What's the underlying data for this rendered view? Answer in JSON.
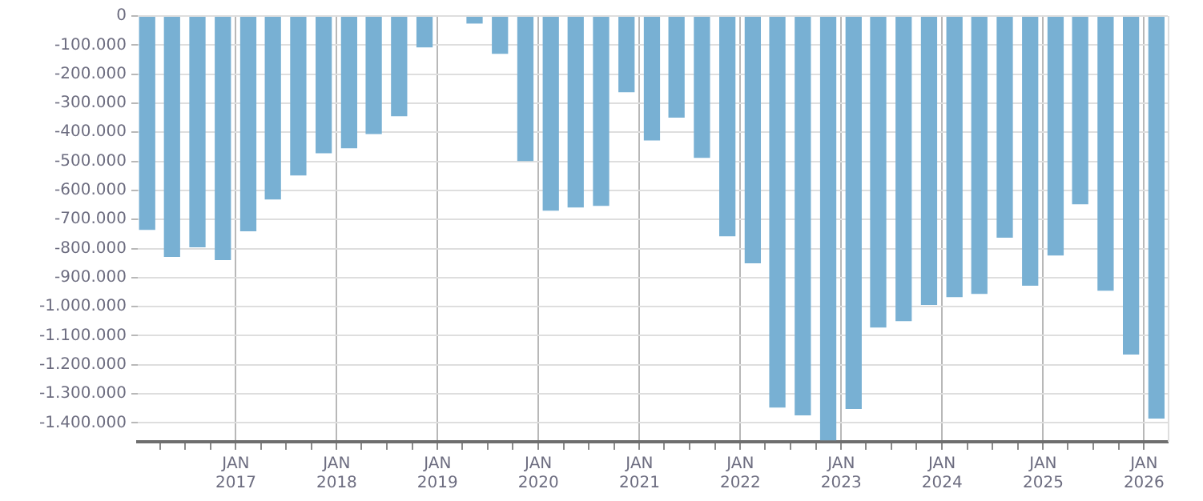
{
  "chart_data": {
    "type": "bar",
    "color": "#78b0d3",
    "x": [
      "2016-02-15",
      "2016-05-15",
      "2016-08-15",
      "2016-11-15",
      "2017-02-15",
      "2017-05-15",
      "2017-08-15",
      "2017-11-15",
      "2018-02-15",
      "2018-05-15",
      "2018-08-15",
      "2018-11-15",
      "2019-02-15",
      "2019-05-15",
      "2019-08-15",
      "2019-11-15",
      "2020-02-15",
      "2020-05-15",
      "2020-08-15",
      "2020-11-15",
      "2021-02-15",
      "2021-05-15",
      "2021-08-15",
      "2021-11-15",
      "2022-02-15",
      "2022-05-15",
      "2022-08-15",
      "2022-11-15",
      "2023-02-15",
      "2023-05-15",
      "2023-08-15",
      "2023-11-15",
      "2024-02-15",
      "2024-05-15",
      "2024-08-15",
      "2024-11-15",
      "2025-02-15",
      "2025-05-15",
      "2025-08-15",
      "2025-11-15",
      "2026-02-15"
    ],
    "values": [
      -736000,
      -829000,
      -796000,
      -840000,
      -741000,
      -631000,
      -549000,
      -472000,
      -455000,
      -406000,
      -345000,
      -108000,
      null,
      -26000,
      -130000,
      -499000,
      -670000,
      -659000,
      -653000,
      -262000,
      -428000,
      -350000,
      -488000,
      -758000,
      -851000,
      -1347000,
      -1374000,
      -1460000,
      -1352000,
      -1072000,
      -1050000,
      -994000,
      -967000,
      -956000,
      -763000,
      -928000,
      -824000,
      -648000,
      -945000,
      -1165000,
      -1385000
    ],
    "xlim": [
      "2016-01-12",
      "2026-03-28"
    ],
    "xticks": [
      {
        "value": "2016-04-01",
        "label": null
      },
      {
        "value": "2016-07-01",
        "label": null
      },
      {
        "value": "2016-10-01",
        "label": null
      },
      {
        "value": "2017-01-01",
        "label": "JAN\n2017"
      },
      {
        "value": "2017-04-01",
        "label": null
      },
      {
        "value": "2017-07-01",
        "label": null
      },
      {
        "value": "2017-10-01",
        "label": null
      },
      {
        "value": "2018-01-01",
        "label": "JAN\n2018"
      },
      {
        "value": "2018-04-01",
        "label": null
      },
      {
        "value": "2018-07-01",
        "label": null
      },
      {
        "value": "2018-10-01",
        "label": null
      },
      {
        "value": "2019-01-01",
        "label": "JAN\n2019"
      },
      {
        "value": "2019-04-01",
        "label": null
      },
      {
        "value": "2019-07-01",
        "label": null
      },
      {
        "value": "2019-10-01",
        "label": null
      },
      {
        "value": "2020-01-01",
        "label": "JAN\n2020"
      },
      {
        "value": "2020-04-01",
        "label": null
      },
      {
        "value": "2020-07-01",
        "label": null
      },
      {
        "value": "2020-10-01",
        "label": null
      },
      {
        "value": "2021-01-01",
        "label": "JAN\n2021"
      },
      {
        "value": "2021-04-01",
        "label": null
      },
      {
        "value": "2021-07-01",
        "label": null
      },
      {
        "value": "2021-10-01",
        "label": null
      },
      {
        "value": "2022-01-01",
        "label": "JAN\n2022"
      },
      {
        "value": "2022-04-01",
        "label": null
      },
      {
        "value": "2022-07-01",
        "label": null
      },
      {
        "value": "2022-10-01",
        "label": null
      },
      {
        "value": "2023-01-01",
        "label": "JAN\n2023"
      },
      {
        "value": "2023-04-01",
        "label": null
      },
      {
        "value": "2023-07-01",
        "label": null
      },
      {
        "value": "2023-10-01",
        "label": null
      },
      {
        "value": "2024-01-01",
        "label": "JAN\n2024"
      },
      {
        "value": "2024-04-01",
        "label": null
      },
      {
        "value": "2024-07-01",
        "label": null
      },
      {
        "value": "2024-10-01",
        "label": null
      },
      {
        "value": "2025-01-01",
        "label": "JAN\n2025"
      },
      {
        "value": "2025-04-01",
        "label": null
      },
      {
        "value": "2025-07-01",
        "label": null
      },
      {
        "value": "2025-10-01",
        "label": null
      },
      {
        "value": "2026-01-01",
        "label": "JAN\n2026"
      }
    ],
    "ylim": [
      -1465000,
      0
    ],
    "yticks": [
      {
        "value": 0,
        "label": "0"
      },
      {
        "value": -100000,
        "label": "-100.000"
      },
      {
        "value": -200000,
        "label": "-200.000"
      },
      {
        "value": -300000,
        "label": "-300.000"
      },
      {
        "value": -400000,
        "label": "-400.000"
      },
      {
        "value": -500000,
        "label": "-500.000"
      },
      {
        "value": -600000,
        "label": "-600.000"
      },
      {
        "value": -700000,
        "label": "-700.000"
      },
      {
        "value": -800000,
        "label": "-800.000"
      },
      {
        "value": -900000,
        "label": "-900.000"
      },
      {
        "value": -1000000,
        "label": "-1.000.000"
      },
      {
        "value": -1100000,
        "label": "-1.100.000"
      },
      {
        "value": -1200000,
        "label": "-1.200.000"
      },
      {
        "value": -1300000,
        "label": "-1.300.000"
      },
      {
        "value": -1400000,
        "label": "-1.400.000"
      }
    ],
    "grid": true,
    "legend": false
  }
}
